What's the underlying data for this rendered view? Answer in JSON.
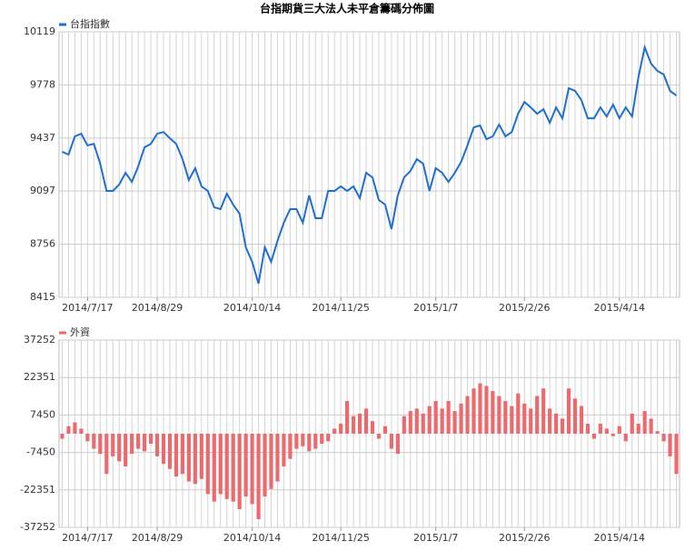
{
  "chart_data": [
    {
      "type": "line",
      "title": "台指期貨三大法人未平倉籌碼分佈圖",
      "categories": [
        null,
        null,
        null,
        null,
        "2014/7/17",
        null,
        null,
        null,
        null,
        null,
        null,
        null,
        null,
        null,
        null,
        "2014/8/29",
        null,
        null,
        null,
        null,
        null,
        null,
        null,
        null,
        null,
        null,
        null,
        null,
        null,
        null,
        "2014/10/14",
        null,
        null,
        null,
        null,
        null,
        null,
        null,
        null,
        null,
        null,
        null,
        null,
        null,
        "2014/11/25",
        null,
        null,
        null,
        null,
        null,
        null,
        null,
        null,
        null,
        null,
        null,
        null,
        null,
        null,
        "2015/1/7",
        null,
        null,
        null,
        null,
        null,
        null,
        null,
        null,
        null,
        null,
        null,
        null,
        null,
        "2015/2/26",
        null,
        null,
        null,
        null,
        null,
        null,
        null,
        null,
        null,
        null,
        null,
        null,
        null,
        null,
        "2015/4/14",
        null,
        null,
        null,
        null,
        null,
        null,
        null,
        null,
        null
      ],
      "series": [
        {
          "name": "台指指數",
          "color": "#1f6fd1",
          "values": [
            9349,
            9331,
            9448,
            9465,
            9390,
            9400,
            9273,
            9098,
            9098,
            9139,
            9214,
            9156,
            9255,
            9378,
            9400,
            9465,
            9476,
            9436,
            9400,
            9302,
            9168,
            9244,
            9127,
            9098,
            8993,
            8981,
            9080,
            9010,
            8952,
            8736,
            8643,
            8503,
            8736,
            8643,
            8777,
            8894,
            8981,
            8981,
            8894,
            9069,
            8923,
            8923,
            9098,
            9098,
            9127,
            9098,
            9127,
            9051,
            9214,
            9185,
            9040,
            9010,
            8853,
            9069,
            9185,
            9226,
            9302,
            9273,
            9098,
            9244,
            9214,
            9156,
            9214,
            9284,
            9390,
            9506,
            9518,
            9430,
            9448,
            9524,
            9448,
            9476,
            9593,
            9669,
            9634,
            9593,
            9622,
            9535,
            9634,
            9564,
            9757,
            9740,
            9681,
            9564,
            9564,
            9634,
            9576,
            9652,
            9564,
            9634,
            9576,
            9827,
            10020,
            9915,
            9868,
            9845,
            9740,
            9710
          ]
        }
      ],
      "ylim": [
        8415,
        10119
      ],
      "yticks": [
        8415,
        8756,
        9097,
        9437,
        9778,
        10119
      ],
      "grid": true
    },
    {
      "type": "bar",
      "categories": [
        null,
        null,
        null,
        null,
        "2014/7/17",
        null,
        null,
        null,
        null,
        null,
        null,
        null,
        null,
        null,
        null,
        "2014/8/29",
        null,
        null,
        null,
        null,
        null,
        null,
        null,
        null,
        null,
        null,
        null,
        null,
        null,
        null,
        "2014/10/14",
        null,
        null,
        null,
        null,
        null,
        null,
        null,
        null,
        null,
        null,
        null,
        null,
        null,
        "2014/11/25",
        null,
        null,
        null,
        null,
        null,
        null,
        null,
        null,
        null,
        null,
        null,
        null,
        null,
        null,
        "2015/1/7",
        null,
        null,
        null,
        null,
        null,
        null,
        null,
        null,
        null,
        null,
        null,
        null,
        null,
        "2015/2/26",
        null,
        null,
        null,
        null,
        null,
        null,
        null,
        null,
        null,
        null,
        null,
        null,
        null,
        null,
        "2015/4/14",
        null,
        null,
        null,
        null,
        null,
        null,
        null,
        null,
        null
      ],
      "series": [
        {
          "name": "外資",
          "color": "#ec6a6e",
          "values": [
            -2000,
            3000,
            4500,
            2000,
            -3000,
            -6000,
            -8000,
            -16000,
            -9000,
            -11000,
            -13000,
            -8000,
            -6000,
            -7000,
            -4000,
            -9000,
            -12000,
            -14000,
            -17000,
            -16000,
            -19000,
            -20000,
            -18000,
            -24000,
            -27000,
            -24000,
            -26000,
            -27000,
            -30000,
            -25000,
            -28000,
            -34000,
            -25000,
            -22000,
            -19000,
            -13000,
            -10000,
            -6000,
            -5000,
            -7000,
            -6000,
            -4000,
            -3000,
            2000,
            4000,
            13000,
            7000,
            8000,
            10000,
            5000,
            -2000,
            3000,
            -6000,
            -8000,
            7000,
            9000,
            10000,
            8000,
            11000,
            13000,
            10000,
            13000,
            9000,
            12000,
            15000,
            18000,
            20000,
            19000,
            17000,
            15000,
            13000,
            11000,
            16000,
            12000,
            10000,
            15000,
            18000,
            10000,
            8000,
            6000,
            18000,
            14000,
            11000,
            4000,
            -2000,
            4000,
            2000,
            -1000,
            3000,
            -3000,
            8000,
            4000,
            9000,
            6000,
            1000,
            -3000,
            -9000,
            -16000
          ]
        }
      ],
      "ylim": [
        -37252,
        37252
      ],
      "yticks": [
        -37252,
        -22351,
        -7450,
        7450,
        22351,
        37252
      ],
      "grid": true
    }
  ]
}
